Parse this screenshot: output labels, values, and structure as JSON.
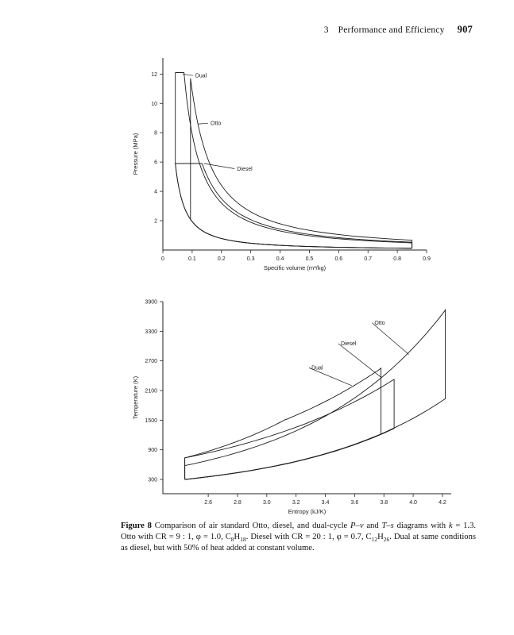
{
  "header": {
    "section": "3",
    "title": "Performance and Efficiency",
    "page": "907"
  },
  "caption": {
    "runs": [
      {
        "t": "Figure 8",
        "b": true
      },
      {
        "t": "   Comparison of air standard Otto, diesel, and dual-cycle "
      },
      {
        "t": "P",
        "i": true
      },
      {
        "t": "–"
      },
      {
        "t": "v",
        "i": true
      },
      {
        "t": " and "
      },
      {
        "t": "T",
        "i": true
      },
      {
        "t": "–"
      },
      {
        "t": "s",
        "i": true
      },
      {
        "t": " diagrams with "
      },
      {
        "t": "k",
        "i": true
      },
      {
        "t": " = 1.3. Otto with CR = 9 : 1, φ = 1.0, C"
      },
      {
        "t": "8",
        "sub": true
      },
      {
        "t": "H"
      },
      {
        "t": "18",
        "sub": true
      },
      {
        "t": ". Diesel with CR = 20 : 1, φ = 0.7, C"
      },
      {
        "t": "12",
        "sub": true
      },
      {
        "t": "H"
      },
      {
        "t": "26",
        "sub": true
      },
      {
        "t": ". Dual at same conditions as diesel, but with 50% of heat added at constant volume."
      }
    ]
  },
  "chart_data": [
    {
      "id": "pv",
      "type": "line",
      "title": "",
      "xlabel": "Specific volume  (m³/kg)",
      "ylabel": "Pressure (MPa)",
      "xlim": [
        0,
        0.9
      ],
      "ylim": [
        0,
        13.1
      ],
      "xticks": [
        "0",
        "0.1",
        "0.2",
        "0.3",
        "0.4",
        "0.5",
        "0.6",
        "0.7",
        "0.8",
        "0.9"
      ],
      "yticks": [
        "2",
        "4",
        "6",
        "8",
        "10",
        "12"
      ],
      "k": 1.3,
      "legend": "inline-labels",
      "grid": false,
      "series": [
        {
          "name": "Otto",
          "segments": [
            {
              "t": "isen",
              "a": [
                0.85,
                0.12
              ],
              "b": [
                0.0944,
                2.09
              ]
            },
            {
              "t": "line",
              "a": [
                0.0944,
                2.09
              ],
              "b": [
                0.0944,
                11.7
              ]
            },
            {
              "t": "isen",
              "a": [
                0.0944,
                11.7
              ],
              "b": [
                0.85,
                0.67
              ]
            },
            {
              "t": "line",
              "a": [
                0.85,
                0.67
              ],
              "b": [
                0.85,
                0.12
              ]
            }
          ]
        },
        {
          "name": "Diesel",
          "segments": [
            {
              "t": "isen",
              "a": [
                0.85,
                0.12
              ],
              "b": [
                0.0425,
                5.9
              ]
            },
            {
              "t": "line",
              "a": [
                0.0425,
                5.9
              ],
              "b": [
                0.134,
                5.9
              ]
            },
            {
              "t": "isen",
              "a": [
                0.134,
                5.9
              ],
              "b": [
                0.85,
                0.53
              ]
            },
            {
              "t": "line",
              "a": [
                0.85,
                0.53
              ],
              "b": [
                0.85,
                0.12
              ]
            }
          ]
        },
        {
          "name": "Dual",
          "segments": [
            {
              "t": "isen",
              "a": [
                0.85,
                0.12
              ],
              "b": [
                0.0425,
                5.9
              ]
            },
            {
              "t": "line",
              "a": [
                0.0425,
                5.9
              ],
              "b": [
                0.0425,
                12.1
              ]
            },
            {
              "t": "line",
              "a": [
                0.0425,
                12.1
              ],
              "b": [
                0.072,
                12.1
              ]
            },
            {
              "t": "isen",
              "a": [
                0.072,
                12.1
              ],
              "b": [
                0.85,
                0.49
              ]
            },
            {
              "t": "line",
              "a": [
                0.85,
                0.49
              ],
              "b": [
                0.85,
                0.12
              ]
            }
          ]
        }
      ],
      "annotations": [
        {
          "label": "Dual",
          "text": [
            0.108,
            11.9
          ],
          "target": [
            0.068,
            12.0
          ]
        },
        {
          "label": "Otto",
          "text": [
            0.16,
            8.65
          ],
          "target": [
            0.121,
            8.6
          ]
        },
        {
          "label": "Diesel",
          "text": [
            0.25,
            5.55
          ],
          "target": [
            0.14,
            5.9
          ]
        }
      ]
    },
    {
      "id": "ts",
      "type": "line",
      "title": "",
      "xlabel": "Entropy (kJ/K)",
      "ylabel": "Temperature (K)",
      "xlim": [
        2.29,
        4.26
      ],
      "ylim": [
        11,
        3900
      ],
      "xticks": [
        "2.6",
        "2.8",
        "3.0",
        "3.2",
        "3.4",
        "3.6",
        "3.8",
        "4.0",
        "4.2"
      ],
      "yticks": [
        "300",
        "900",
        "1500",
        "2100",
        "2700",
        "3300",
        "3900"
      ],
      "k": 1.3,
      "legend": "inline-labels",
      "grid": false,
      "series": [
        {
          "name": "Otto",
          "segments": [
            {
              "t": "line",
              "a": [
                2.44,
                300
              ],
              "b": [
                2.44,
                580
              ]
            },
            {
              "t": "exp",
              "c": 0.9567,
              "a": [
                2.44,
                580
              ],
              "b": [
                4.22,
                3740
              ]
            },
            {
              "t": "line",
              "a": [
                4.22,
                3740
              ],
              "b": [
                4.22,
                1935
              ]
            },
            {
              "t": "exp",
              "c": 0.9567,
              "a": [
                4.22,
                1935
              ],
              "b": [
                2.44,
                300
              ]
            }
          ]
        },
        {
          "name": "Diesel",
          "segments": [
            {
              "t": "line",
              "a": [
                2.44,
                300
              ],
              "b": [
                2.44,
                737
              ]
            },
            {
              "t": "exp",
              "c": 1.2437,
              "a": [
                2.44,
                737
              ],
              "b": [
                3.87,
                2320
              ]
            },
            {
              "t": "line",
              "a": [
                3.87,
                2320
              ],
              "b": [
                3.87,
                1331
              ]
            },
            {
              "t": "exp",
              "c": 0.9567,
              "a": [
                3.87,
                1331
              ],
              "b": [
                2.44,
                300
              ]
            }
          ]
        },
        {
          "name": "Dual",
          "segments": [
            {
              "t": "line",
              "a": [
                2.44,
                300
              ],
              "b": [
                2.44,
                737
              ]
            },
            {
              "t": "exp",
              "c": 0.9567,
              "a": [
                2.44,
                737
              ],
              "b": [
                3.13,
                1512
              ]
            },
            {
              "t": "exp",
              "c": 1.2437,
              "a": [
                3.13,
                1512
              ],
              "b": [
                3.78,
                2560
              ]
            },
            {
              "t": "line",
              "a": [
                3.78,
                2560
              ],
              "b": [
                3.78,
                1217
              ]
            },
            {
              "t": "exp",
              "c": 0.9567,
              "a": [
                3.78,
                1217
              ],
              "b": [
                2.44,
                300
              ]
            }
          ]
        }
      ],
      "annotations": [
        {
          "label": "Otto",
          "text": [
            3.73,
            3470
          ],
          "target": [
            3.97,
            2830
          ]
        },
        {
          "label": "Diesel",
          "text": [
            3.5,
            3050
          ],
          "target": [
            3.78,
            2370
          ]
        },
        {
          "label": "Dual",
          "text": [
            3.3,
            2560
          ],
          "target": [
            3.58,
            2200
          ]
        }
      ]
    }
  ]
}
